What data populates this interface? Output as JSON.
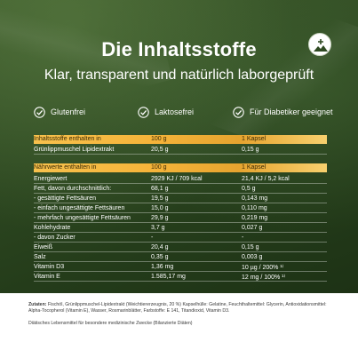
{
  "title": "Die Inhaltsstoffe",
  "subtitle": "Klar, transparent und natürlich laborgeprüft",
  "features": [
    {
      "label": "Glutenfrei"
    },
    {
      "label": "Laktosefrei"
    },
    {
      "label": "Für Diabetiker geeignet"
    }
  ],
  "table1": {
    "header": [
      "Inhaltsstoffe enthalten in",
      "100 g",
      "1 Kapsel"
    ],
    "rows": [
      [
        "Grünlippmuschel Lipidextrakt",
        "20,5 g",
        "0,15 g"
      ]
    ]
  },
  "table2": {
    "header": [
      "Nährwerte enthalten in",
      "100 g",
      "1 Kapsel"
    ],
    "rows": [
      [
        "Energiewert",
        "2929 KJ / 709 kcal",
        "21,4 KJ / 5,2 kcal"
      ],
      [
        "Fett, davon durchschnittlich:",
        "68,1 g",
        "0,5 g"
      ],
      [
        "- gesättigte Fettsäuren",
        "19,5 g",
        "0,143 mg"
      ],
      [
        "- einfach ungesättigte Fettsäuren",
        "15,0 g",
        "0,110 mg"
      ],
      [
        "- mehrfach ungesättigte Fettsäuren",
        "29,9 g",
        "0,219 mg"
      ],
      [
        "Kohlehydrate",
        "3,7 g",
        "0,027 g"
      ],
      [
        "- davon Zucker",
        "-",
        "-"
      ],
      [
        "Eiweiß",
        "20,4 g",
        "0,15 g"
      ],
      [
        "Salz",
        "0,35 g",
        "0,003 g"
      ],
      [
        "Vitamin D3",
        "1,36 mg",
        "10 µg / 200% ¹⁾"
      ],
      [
        "Vitamin E",
        "1.585,17 mg",
        "12 mg / 100% ¹⁾"
      ]
    ]
  },
  "footer": {
    "label": "Zutaten:",
    "text": " Fischöl, Grünlippmuschel-Lipidextrakt (Weichtiererzeugnis, 20 %) Kapselhülle: Gelatine, Feuchthaltemittel: Glycerin, Antioxidationsmittel: Alpha-Tocopherol (Vitamin E), Wasser, Rosmarinblätter, Farbstoffe: E 141, Titandioxid, Vitamin D3.",
    "diet": "Diätisches Lebensmittel für besondere medizinische Zwecke (Bilanzierte Diäten)"
  }
}
